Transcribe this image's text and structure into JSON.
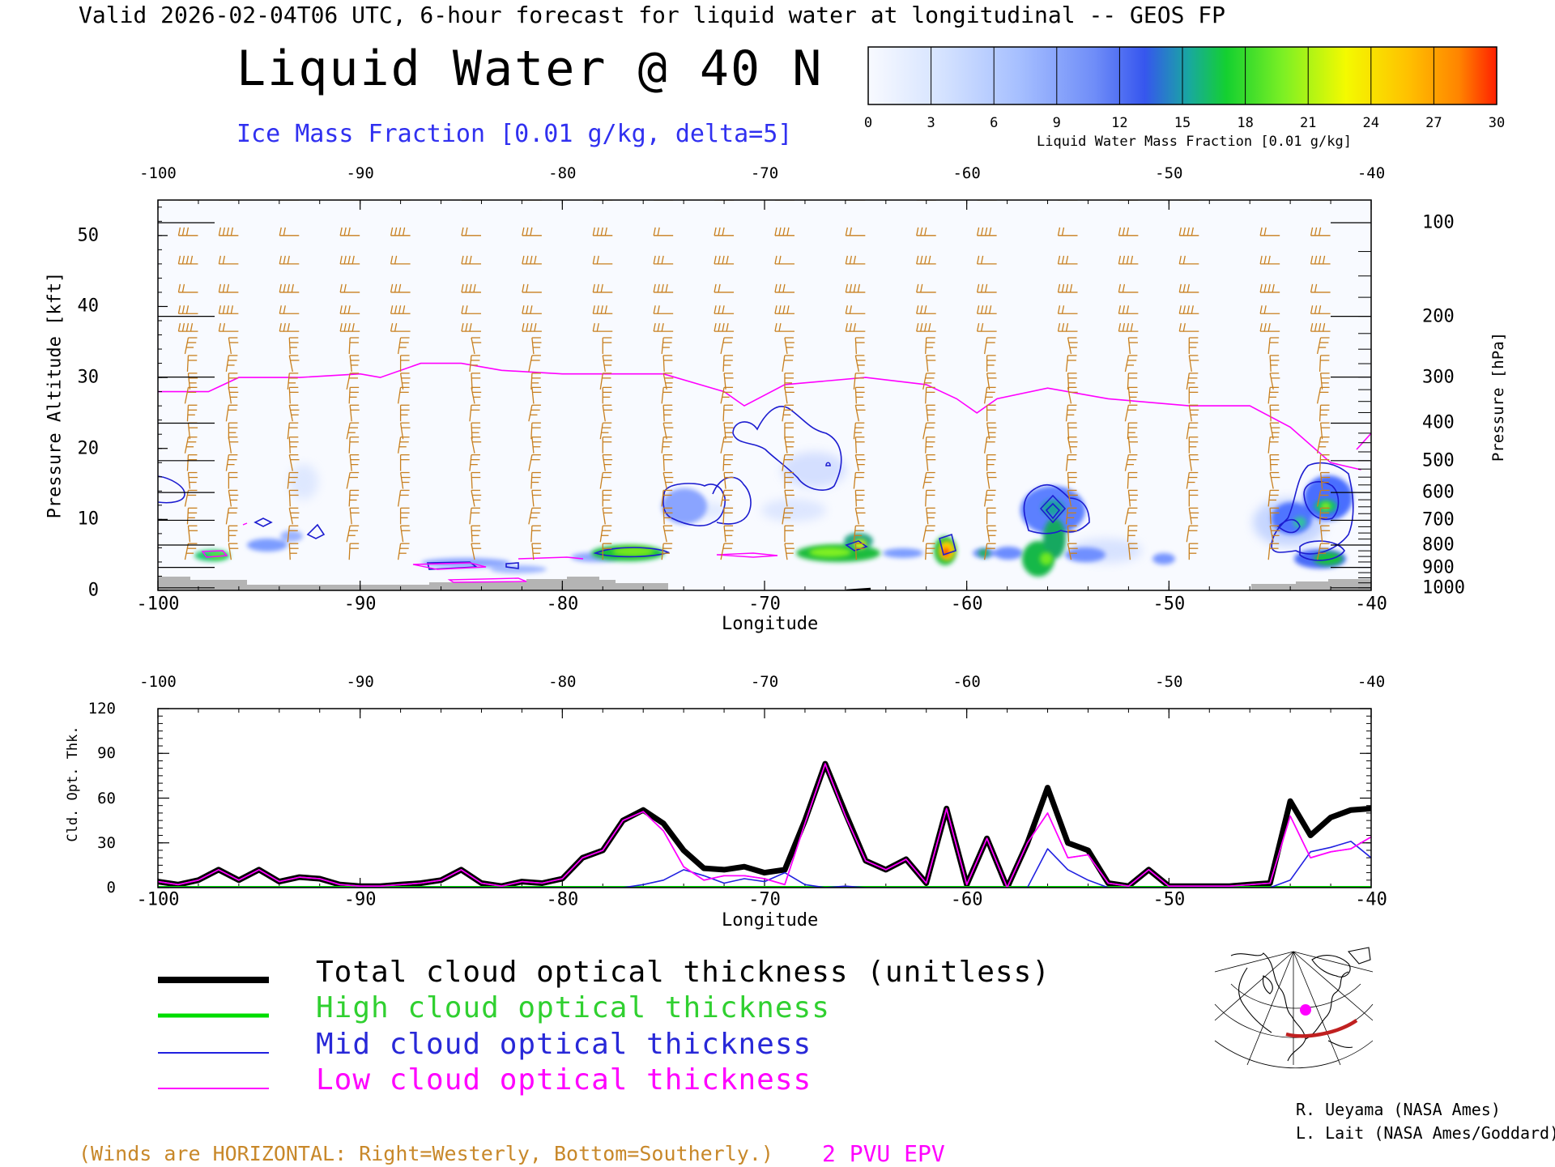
{
  "header": "Valid 2026-02-04T06 UTC, 6-hour forecast for liquid water at longitudinal -- GEOS FP",
  "title": "Liquid Water @ 40 N",
  "subtitle": "Ice Mass Fraction [0.01 g/kg, delta=5]",
  "colorbar": {
    "ticks": [
      "0",
      "3",
      "6",
      "9",
      "12",
      "15",
      "18",
      "21",
      "24",
      "27",
      "30"
    ],
    "label": "Liquid Water Mass Fraction [0.01 g/kg]",
    "colors": [
      "#f4f8ff",
      "#cfe0ff",
      "#a8c4ff",
      "#7c98ff",
      "#3a5cf5",
      "#1aa0a0",
      "#18d028",
      "#80f020",
      "#f0ff00",
      "#ffc800",
      "#ff8c00",
      "#ff2400"
    ]
  },
  "top_panel": {
    "x_ticks": [
      "-100",
      "-90",
      "-80",
      "-70",
      "-60",
      "-50",
      "-40"
    ],
    "y_left_ticks": [
      "0",
      "10",
      "20",
      "30",
      "40",
      "50"
    ],
    "y_left_label": "Pressure Altitude [kft]",
    "y_right_ticks": [
      "100",
      "200",
      "300",
      "400",
      "500",
      "600",
      "700",
      "800",
      "900",
      "1000"
    ],
    "y_right_label": "Pressure [hPa]",
    "x_label": "Longitude"
  },
  "bottom_panel": {
    "x_ticks": [
      "-100",
      "-90",
      "-80",
      "-70",
      "-60",
      "-50",
      "-40"
    ],
    "y_ticks": [
      "0",
      "30",
      "60",
      "90",
      "120"
    ],
    "y_label": "Cld. Opt. Thk.",
    "x_label": "Longitude"
  },
  "legend": {
    "total": "Total cloud optical thickness (unitless)",
    "high": "High cloud optical thickness",
    "mid": "Mid cloud optical thickness",
    "low": "Low cloud optical thickness"
  },
  "credits": {
    "line1": "R. Ueyama (NASA Ames)",
    "line2": "L. Lait (NASA Ames/Goddard)"
  },
  "footer": {
    "winds_note": "(Winds are HORIZONTAL: Right=Westerly, Bottom=Southerly.)",
    "epv": "2 PVU EPV"
  },
  "colors": {
    "total": "#000000",
    "high": "#00dd00",
    "mid": "#2020e0",
    "low": "#ff00ff",
    "wind_barb": "#c87f1e",
    "terrain": "#b4b4b4",
    "ice_contour": "#1c1cd0"
  },
  "chart_data": [
    {
      "type": "heatmap",
      "title": "Liquid Water @ 40 N",
      "xlabel": "Longitude",
      "ylabel": "Pressure Altitude [kft]",
      "xlim": [
        -100,
        -40
      ],
      "ylim": [
        0,
        55
      ],
      "grid": false,
      "variable": "Liquid Water Mass Fraction [0.01 g/kg]",
      "value_range": [
        0,
        30
      ],
      "features": [
        {
          "lon": -97,
          "alt_kft": 5,
          "value": 15
        },
        {
          "lon": -95,
          "alt_kft": 7,
          "value": 8
        },
        {
          "lon": -93,
          "alt_kft": 8,
          "value": 6
        },
        {
          "lon": -85,
          "alt_kft": 4.5,
          "value": 5
        },
        {
          "lon": -76,
          "alt_kft": 5.5,
          "value": 16
        },
        {
          "lon": -73,
          "alt_kft": 12,
          "value": 6
        },
        {
          "lon": -66.5,
          "alt_kft": 5,
          "value": 16
        },
        {
          "lon": -65.5,
          "alt_kft": 7,
          "value": 17
        },
        {
          "lon": -61,
          "alt_kft": 5.5,
          "value": 27
        },
        {
          "lon": -56,
          "alt_kft": 6,
          "value": 18
        },
        {
          "lon": -56,
          "alt_kft": 11,
          "value": 12
        },
        {
          "lon": -54,
          "alt_kft": 5,
          "value": 8
        },
        {
          "lon": -50.5,
          "alt_kft": 4.5,
          "value": 6
        },
        {
          "lon": -44,
          "alt_kft": 10,
          "value": 10
        },
        {
          "lon": -42,
          "alt_kft": 12,
          "value": 17
        },
        {
          "lon": -42,
          "alt_kft": 4.5,
          "value": 16
        }
      ],
      "epv_2pvu_kft": [
        {
          "lon": -100,
          "alt": 28
        },
        {
          "lon": -97.5,
          "alt": 28
        },
        {
          "lon": -96,
          "alt": 30
        },
        {
          "lon": -93,
          "alt": 30
        },
        {
          "lon": -90,
          "alt": 30.5
        },
        {
          "lon": -89,
          "alt": 30
        },
        {
          "lon": -87,
          "alt": 32
        },
        {
          "lon": -85,
          "alt": 32
        },
        {
          "lon": -83,
          "alt": 31
        },
        {
          "lon": -80,
          "alt": 30.5
        },
        {
          "lon": -75,
          "alt": 30.5
        },
        {
          "lon": -72,
          "alt": 28
        },
        {
          "lon": -71,
          "alt": 26
        },
        {
          "lon": -69,
          "alt": 29
        },
        {
          "lon": -65,
          "alt": 30
        },
        {
          "lon": -62,
          "alt": 29
        },
        {
          "lon": -60.5,
          "alt": 27
        },
        {
          "lon": -59.5,
          "alt": 25
        },
        {
          "lon": -58.5,
          "alt": 27
        },
        {
          "lon": -56,
          "alt": 28.5
        },
        {
          "lon": -53,
          "alt": 27
        },
        {
          "lon": -49,
          "alt": 26
        },
        {
          "lon": -46,
          "alt": 26
        },
        {
          "lon": -44,
          "alt": 23
        },
        {
          "lon": -42,
          "alt": 18
        },
        {
          "lon": -40.5,
          "alt": 17
        }
      ]
    },
    {
      "type": "line",
      "xlabel": "Longitude",
      "ylabel": "Cld. Opt. Thk.",
      "xlim": [
        -100,
        -40
      ],
      "ylim": [
        0,
        120
      ],
      "grid": false,
      "x": [
        -100,
        -99,
        -98,
        -97,
        -96,
        -95,
        -94,
        -93,
        -92,
        -91,
        -90,
        -89,
        -88,
        -87,
        -86,
        -85,
        -84,
        -83,
        -82,
        -81,
        -80,
        -79,
        -78,
        -77,
        -76,
        -75,
        -74,
        -73,
        -72,
        -71,
        -70,
        -69,
        -68,
        -67,
        -66,
        -65,
        -64,
        -63,
        -62,
        -61,
        -60,
        -59,
        -58,
        -57,
        -56,
        -55,
        -54,
        -53,
        -52,
        -51,
        -50,
        -49,
        -48,
        -47,
        -46,
        -45,
        -44,
        -43,
        -42,
        -41,
        -40
      ],
      "series": [
        {
          "name": "Total cloud optical thickness (unitless)",
          "values": [
            4,
            2,
            5,
            12,
            5,
            12,
            4,
            7,
            6,
            2,
            1,
            1,
            2,
            3,
            5,
            12,
            3,
            1,
            4,
            3,
            6,
            20,
            25,
            45,
            52,
            43,
            25,
            13,
            12,
            14,
            10,
            12,
            45,
            83,
            50,
            18,
            12,
            19,
            3,
            53,
            2,
            33,
            0,
            30,
            67,
            30,
            25,
            3,
            1,
            12,
            1,
            1,
            1,
            1,
            2,
            3,
            58,
            35,
            47,
            52,
            53
          ]
        },
        {
          "name": "High cloud optical thickness",
          "values": [
            0,
            0,
            0,
            0,
            0,
            0,
            0,
            0,
            0,
            0,
            0,
            0,
            0,
            0,
            0,
            0,
            0,
            0,
            0,
            0,
            0,
            0,
            0,
            0,
            0,
            0,
            0,
            0,
            0,
            0,
            0,
            0,
            0,
            0,
            0,
            0,
            0,
            0,
            0,
            0,
            0,
            0,
            0,
            0,
            0,
            0,
            0,
            0,
            0,
            0,
            0,
            0,
            0,
            0,
            0,
            0,
            0,
            0,
            0,
            0,
            0
          ]
        },
        {
          "name": "Mid cloud optical thickness",
          "values": [
            0,
            0,
            0,
            0,
            0,
            0,
            0,
            0,
            0,
            0,
            0,
            0,
            0,
            0,
            0,
            0,
            0,
            0,
            0,
            0,
            0,
            0,
            0,
            0,
            2,
            5,
            12,
            8,
            3,
            6,
            4,
            10,
            2,
            0,
            1,
            0,
            0,
            0,
            0,
            0,
            0,
            0,
            0,
            0,
            26,
            12,
            5,
            0,
            0,
            0,
            0,
            0,
            0,
            0,
            0,
            0,
            5,
            24,
            27,
            31,
            20
          ]
        },
        {
          "name": "Low cloud optical thickness",
          "values": [
            4,
            2,
            5,
            12,
            5,
            12,
            4,
            7,
            6,
            2,
            1,
            1,
            2,
            3,
            5,
            12,
            3,
            1,
            4,
            3,
            6,
            20,
            25,
            45,
            51,
            38,
            14,
            5,
            8,
            8,
            6,
            2,
            43,
            83,
            48,
            18,
            12,
            19,
            3,
            53,
            2,
            33,
            0,
            30,
            50,
            20,
            22,
            3,
            1,
            12,
            1,
            1,
            1,
            1,
            2,
            3,
            48,
            20,
            24,
            26,
            34
          ]
        }
      ]
    }
  ]
}
